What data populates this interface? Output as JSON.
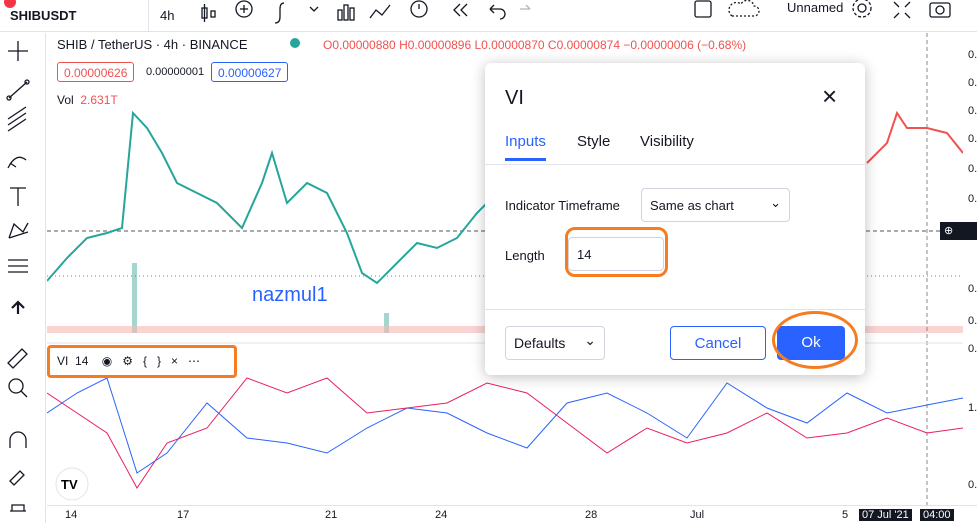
{
  "toolbar": {
    "symbol": "SHIBUSDT",
    "interval": "4h",
    "layout_name": "Unnamed"
  },
  "legend": {
    "title": "SHIB / TetherUS · 4h · BINANCE",
    "open": "O0.00000880",
    "high": "H0.00000896",
    "low": "L0.00000870",
    "close": "C0.00000874",
    "change": "−0.00000006 (−0.68%)",
    "bid": "0.00000626",
    "spread": "0.00000001",
    "ask": "0.00000627",
    "volume_label": "Vol",
    "volume_value": "2.631T"
  },
  "watermark": "nazmul1",
  "indicator_legend": {
    "name": "VI",
    "length": "14"
  },
  "dialog": {
    "title": "VI",
    "tabs": [
      "Inputs",
      "Style",
      "Visibility"
    ],
    "fields": [
      {
        "label": "Indicator Timeframe",
        "value": "Same as chart"
      },
      {
        "label": "Length",
        "value": "14"
      }
    ],
    "defaults": "Defaults",
    "cancel": "Cancel",
    "ok": "Ok"
  },
  "x_axis_labels": [
    "14",
    "17",
    "21",
    "24",
    "28",
    "Jul",
    "5",
    "07 Jul '21",
    "04:00"
  ],
  "right_axis_labels": [
    "0.",
    "0.",
    "0.",
    "0.",
    "0.",
    "0.",
    "0.",
    "0.",
    "0.",
    "0.",
    "1.",
    "0."
  ]
}
